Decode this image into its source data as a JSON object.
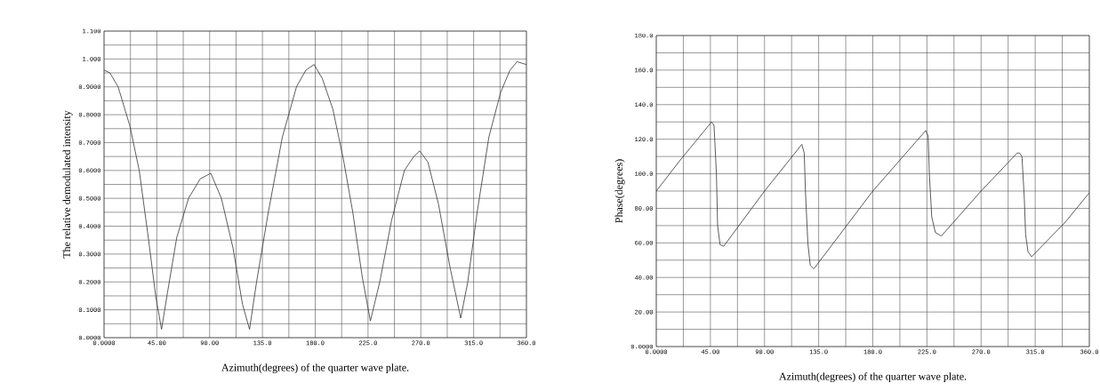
{
  "chart_data": [
    {
      "type": "line",
      "xlabel": "Azimuth(degrees) of the quarter wave plate.",
      "ylabel": "The relative demodulated intensity",
      "grid": true,
      "xlim": [
        0,
        360
      ],
      "ylim": [
        0,
        1.1
      ],
      "xticks": [
        {
          "value": 0,
          "label": "0.0000"
        },
        {
          "value": 22.5,
          "label": null
        },
        {
          "value": 45,
          "label": "45.00"
        },
        {
          "value": 67.5,
          "label": null
        },
        {
          "value": 90,
          "label": "90.00"
        },
        {
          "value": 112.5,
          "label": null
        },
        {
          "value": 135,
          "label": "135.0"
        },
        {
          "value": 157.5,
          "label": null
        },
        {
          "value": 180,
          "label": "180.0"
        },
        {
          "value": 202.5,
          "label": null
        },
        {
          "value": 225,
          "label": "225.0"
        },
        {
          "value": 247.5,
          "label": null
        },
        {
          "value": 270,
          "label": "270.0"
        },
        {
          "value": 292.5,
          "label": null
        },
        {
          "value": 315,
          "label": "315.0"
        },
        {
          "value": 337.5,
          "label": null
        },
        {
          "value": 360,
          "label": "360.0"
        }
      ],
      "yticks": [
        {
          "value": 0,
          "label": "0.0000"
        },
        {
          "value": 0.05,
          "label": null
        },
        {
          "value": 0.1,
          "label": "0.1000"
        },
        {
          "value": 0.15,
          "label": null
        },
        {
          "value": 0.2,
          "label": "0.2000"
        },
        {
          "value": 0.25,
          "label": null
        },
        {
          "value": 0.3,
          "label": "0.3000"
        },
        {
          "value": 0.35,
          "label": null
        },
        {
          "value": 0.4,
          "label": "0.4000"
        },
        {
          "value": 0.45,
          "label": null
        },
        {
          "value": 0.5,
          "label": "0.5000"
        },
        {
          "value": 0.55,
          "label": null
        },
        {
          "value": 0.6,
          "label": "0.6000"
        },
        {
          "value": 0.65,
          "label": null
        },
        {
          "value": 0.7,
          "label": "0.7000"
        },
        {
          "value": 0.75,
          "label": null
        },
        {
          "value": 0.8,
          "label": "0.8000"
        },
        {
          "value": 0.85,
          "label": null
        },
        {
          "value": 0.9,
          "label": "0.9000"
        },
        {
          "value": 0.95,
          "label": null
        },
        {
          "value": 1.0,
          "label": "1.000"
        },
        {
          "value": 1.05,
          "label": null
        },
        {
          "value": 1.1,
          "label": "1.100"
        }
      ],
      "series": [
        {
          "color": "#333333",
          "x": [
            0,
            5,
            12,
            22,
            30,
            38,
            44,
            49,
            54,
            62,
            72,
            82,
            91,
            100,
            110,
            118,
            124,
            130,
            140,
            152,
            164,
            172,
            179,
            186,
            195,
            204,
            212,
            220,
            227,
            235,
            245,
            256,
            264,
            269,
            276,
            285,
            295,
            304,
            310,
            318,
            328,
            338,
            346,
            352,
            360
          ],
          "values": [
            0.96,
            0.95,
            0.9,
            0.76,
            0.6,
            0.35,
            0.15,
            0.03,
            0.16,
            0.36,
            0.5,
            0.57,
            0.59,
            0.5,
            0.32,
            0.12,
            0.03,
            0.2,
            0.45,
            0.72,
            0.9,
            0.96,
            0.98,
            0.93,
            0.82,
            0.64,
            0.45,
            0.22,
            0.06,
            0.2,
            0.42,
            0.6,
            0.65,
            0.67,
            0.63,
            0.48,
            0.25,
            0.07,
            0.2,
            0.45,
            0.72,
            0.88,
            0.96,
            0.99,
            0.98
          ]
        }
      ]
    },
    {
      "type": "line",
      "xlabel": "Azimuth(degrees) of the quarter wave plate.",
      "ylabel": "Phase(degrees)",
      "grid": true,
      "xlim": [
        0,
        360
      ],
      "ylim": [
        0,
        180
      ],
      "xticks": [
        {
          "value": 0,
          "label": "0.0000"
        },
        {
          "value": 22.5,
          "label": null
        },
        {
          "value": 45,
          "label": "45.00"
        },
        {
          "value": 67.5,
          "label": null
        },
        {
          "value": 90,
          "label": "90.00"
        },
        {
          "value": 112.5,
          "label": null
        },
        {
          "value": 135,
          "label": "135.0"
        },
        {
          "value": 157.5,
          "label": null
        },
        {
          "value": 180,
          "label": "180.0"
        },
        {
          "value": 202.5,
          "label": null
        },
        {
          "value": 225,
          "label": "225.0"
        },
        {
          "value": 247.5,
          "label": null
        },
        {
          "value": 270,
          "label": "270.0"
        },
        {
          "value": 292.5,
          "label": null
        },
        {
          "value": 315,
          "label": "315.0"
        },
        {
          "value": 337.5,
          "label": null
        },
        {
          "value": 360,
          "label": "360.0"
        }
      ],
      "yticks": [
        {
          "value": 0,
          "label": "0.0000"
        },
        {
          "value": 10,
          "label": null
        },
        {
          "value": 20,
          "label": "20.00"
        },
        {
          "value": 30,
          "label": null
        },
        {
          "value": 40,
          "label": "40.00"
        },
        {
          "value": 50,
          "label": null
        },
        {
          "value": 60,
          "label": "60.00"
        },
        {
          "value": 70,
          "label": null
        },
        {
          "value": 80,
          "label": "80.00"
        },
        {
          "value": 90,
          "label": null
        },
        {
          "value": 100,
          "label": "100.0"
        },
        {
          "value": 110,
          "label": null
        },
        {
          "value": 120,
          "label": "120.0"
        },
        {
          "value": 130,
          "label": null
        },
        {
          "value": 140,
          "label": "140.0"
        },
        {
          "value": 150,
          "label": null
        },
        {
          "value": 160,
          "label": "160.0"
        },
        {
          "value": 170,
          "label": null
        },
        {
          "value": 180,
          "label": "180.0"
        }
      ],
      "series": [
        {
          "color": "#333333",
          "x": [
            0,
            20,
            46,
            48,
            50,
            51,
            53,
            56,
            90,
            121,
            123,
            124,
            126,
            128,
            131,
            180,
            224,
            226,
            227,
            229,
            232,
            237,
            270,
            300,
            302,
            304,
            306,
            307,
            309,
            312,
            340,
            360
          ],
          "values": [
            90,
            108,
            130,
            128,
            100,
            70,
            59,
            58,
            90,
            117,
            112,
            90,
            60,
            47,
            45,
            90,
            125,
            122,
            100,
            75,
            66,
            64,
            90,
            112,
            112,
            110,
            85,
            65,
            55,
            52,
            72,
            89
          ]
        }
      ]
    }
  ]
}
